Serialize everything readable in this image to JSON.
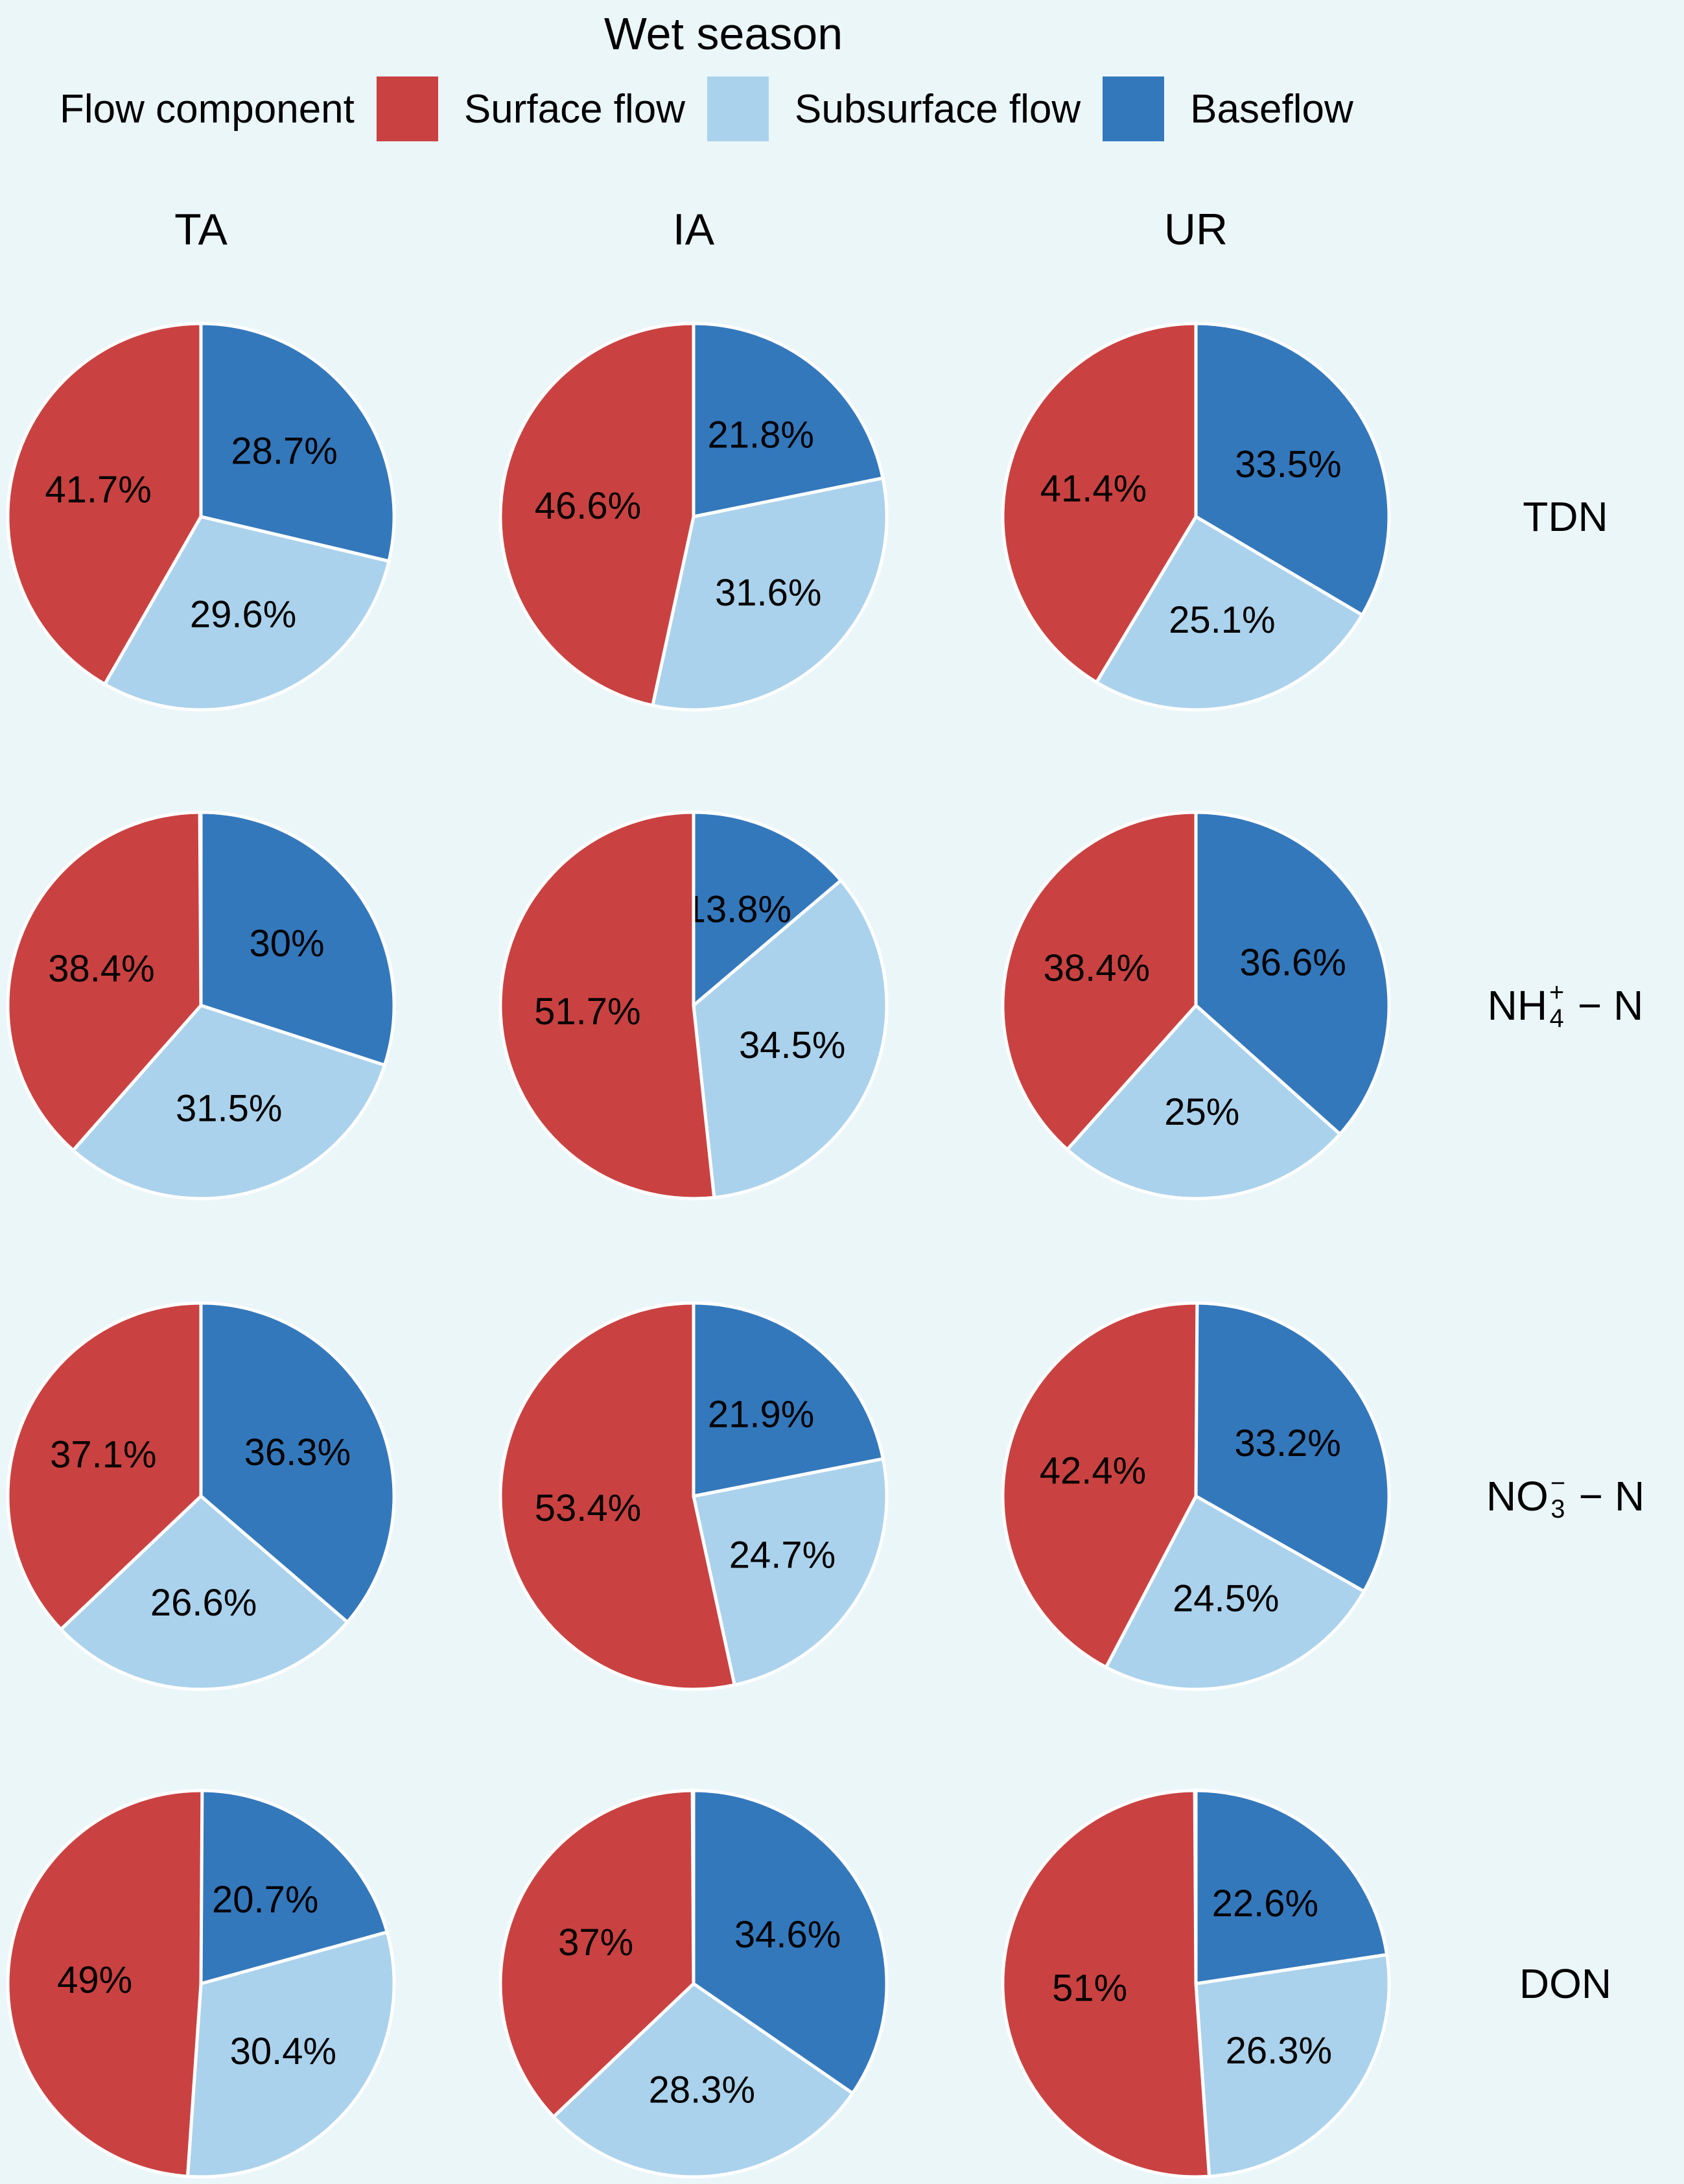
{
  "title": "Wet season",
  "legend": {
    "title": "Flow component",
    "items": [
      {
        "name": "Surface flow",
        "color": "#C94241"
      },
      {
        "name": "Subsurface flow",
        "color": "#ABD2EC"
      },
      {
        "name": "Baseflow",
        "color": "#3478BC"
      }
    ]
  },
  "colors": {
    "background": "#EBF6F9",
    "slice_divider": "#FFFFFF",
    "text": "#000000"
  },
  "columns": [
    "TA",
    "IA",
    "UR"
  ],
  "rows": [
    {
      "id": "TDN",
      "pre": "TDN",
      "sub": "",
      "sup": "",
      "post": ""
    },
    {
      "id": "NH4-N",
      "pre": "NH",
      "sub": "4",
      "sup": "+",
      "post": " − N"
    },
    {
      "id": "NO3-N",
      "pre": "NO",
      "sub": "3",
      "sup": "−",
      "post": " − N"
    },
    {
      "id": "DON",
      "pre": "DON",
      "sub": "",
      "sup": "",
      "post": ""
    }
  ],
  "chart_data": {
    "type": "pie",
    "title": "Wet season",
    "grid": "rows = nitrogen species (TDN, NH4+-N, NO3--N, DON); columns = land-use watersheds (TA, IA, UR)",
    "legend_title": "Flow component",
    "legend_position": "top",
    "slice_order_clockwise_from_top": [
      "Baseflow",
      "Subsurface flow",
      "Surface flow"
    ],
    "pies": [
      {
        "row": "TDN",
        "column": "TA",
        "slices": [
          {
            "flow": "Surface flow",
            "value": 41.7,
            "label": "41.7%"
          },
          {
            "flow": "Subsurface flow",
            "value": 29.6,
            "label": "29.6%"
          },
          {
            "flow": "Baseflow",
            "value": 28.7,
            "label": "28.7%"
          }
        ]
      },
      {
        "row": "TDN",
        "column": "IA",
        "slices": [
          {
            "flow": "Surface flow",
            "value": 46.6,
            "label": "46.6%"
          },
          {
            "flow": "Subsurface flow",
            "value": 31.6,
            "label": "31.6%"
          },
          {
            "flow": "Baseflow",
            "value": 21.8,
            "label": "21.8%"
          }
        ]
      },
      {
        "row": "TDN",
        "column": "UR",
        "slices": [
          {
            "flow": "Surface flow",
            "value": 41.4,
            "label": "41.4%"
          },
          {
            "flow": "Subsurface flow",
            "value": 25.1,
            "label": "25.1%"
          },
          {
            "flow": "Baseflow",
            "value": 33.5,
            "label": "33.5%"
          }
        ]
      },
      {
        "row": "NH4-N",
        "column": "TA",
        "slices": [
          {
            "flow": "Surface flow",
            "value": 38.4,
            "label": "38.4%"
          },
          {
            "flow": "Subsurface flow",
            "value": 31.5,
            "label": "31.5%"
          },
          {
            "flow": "Baseflow",
            "value": 30,
            "label": "30%"
          }
        ]
      },
      {
        "row": "NH4-N",
        "column": "IA",
        "slices": [
          {
            "flow": "Surface flow",
            "value": 51.7,
            "label": "51.7%"
          },
          {
            "flow": "Subsurface flow",
            "value": 34.5,
            "label": "34.5%"
          },
          {
            "flow": "Baseflow",
            "value": 13.8,
            "label": "13.8%"
          }
        ]
      },
      {
        "row": "NH4-N",
        "column": "UR",
        "slices": [
          {
            "flow": "Surface flow",
            "value": 38.4,
            "label": "38.4%"
          },
          {
            "flow": "Subsurface flow",
            "value": 25,
            "label": "25%"
          },
          {
            "flow": "Baseflow",
            "value": 36.6,
            "label": "36.6%"
          }
        ]
      },
      {
        "row": "NO3-N",
        "column": "TA",
        "slices": [
          {
            "flow": "Surface flow",
            "value": 37.1,
            "label": "37.1%"
          },
          {
            "flow": "Subsurface flow",
            "value": 26.6,
            "label": "26.6%"
          },
          {
            "flow": "Baseflow",
            "value": 36.3,
            "label": "36.3%"
          }
        ]
      },
      {
        "row": "NO3-N",
        "column": "IA",
        "slices": [
          {
            "flow": "Surface flow",
            "value": 53.4,
            "label": "53.4%"
          },
          {
            "flow": "Subsurface flow",
            "value": 24.7,
            "label": "24.7%"
          },
          {
            "flow": "Baseflow",
            "value": 21.9,
            "label": "21.9%"
          }
        ]
      },
      {
        "row": "NO3-N",
        "column": "UR",
        "slices": [
          {
            "flow": "Surface flow",
            "value": 42.4,
            "label": "42.4%"
          },
          {
            "flow": "Subsurface flow",
            "value": 24.5,
            "label": "24.5%"
          },
          {
            "flow": "Baseflow",
            "value": 33.2,
            "label": "33.2%"
          }
        ]
      },
      {
        "row": "DON",
        "column": "TA",
        "slices": [
          {
            "flow": "Surface flow",
            "value": 49,
            "label": "49%"
          },
          {
            "flow": "Subsurface flow",
            "value": 30.4,
            "label": "30.4%"
          },
          {
            "flow": "Baseflow",
            "value": 20.7,
            "label": "20.7%"
          }
        ]
      },
      {
        "row": "DON",
        "column": "IA",
        "slices": [
          {
            "flow": "Surface flow",
            "value": 37,
            "label": "37%"
          },
          {
            "flow": "Subsurface flow",
            "value": 28.3,
            "label": "28.3%"
          },
          {
            "flow": "Baseflow",
            "value": 34.6,
            "label": "34.6%"
          }
        ]
      },
      {
        "row": "DON",
        "column": "UR",
        "slices": [
          {
            "flow": "Surface flow",
            "value": 51,
            "label": "51%"
          },
          {
            "flow": "Subsurface flow",
            "value": 26.3,
            "label": "26.3%"
          },
          {
            "flow": "Baseflow",
            "value": 22.6,
            "label": "22.6%"
          }
        ]
      }
    ]
  }
}
